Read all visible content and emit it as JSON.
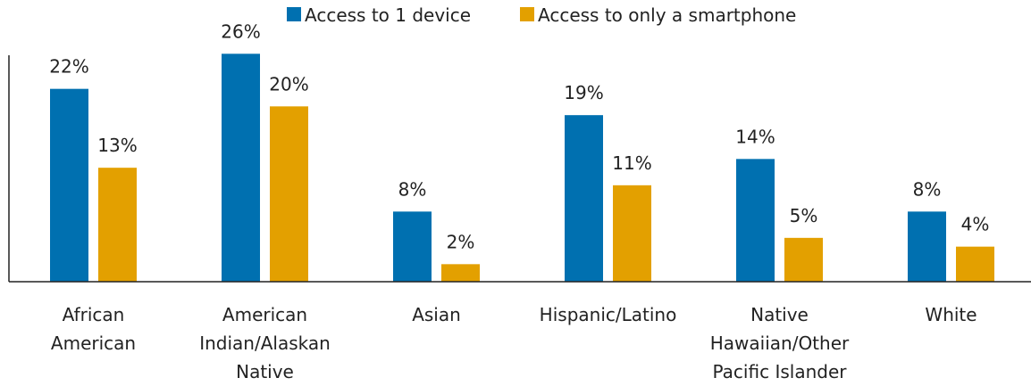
{
  "chart_data": {
    "type": "bar",
    "title": "",
    "xlabel": "",
    "ylabel": "",
    "ylim": [
      0,
      30
    ],
    "grid": false,
    "legend_position": "top-center",
    "categories": [
      [
        "African",
        "American"
      ],
      [
        "American",
        "Indian/Alaskan",
        "Native"
      ],
      [
        "Asian"
      ],
      [
        "Hispanic/Latino"
      ],
      [
        "Native",
        "Hawaiian/Other",
        "Pacific Islander"
      ],
      [
        "White"
      ]
    ],
    "series": [
      {
        "name": "Access to 1 device",
        "color": "#0070b0",
        "values": [
          22,
          26,
          8,
          19,
          14,
          8
        ],
        "labels": [
          "22%",
          "26%",
          "8%",
          "19%",
          "14%",
          "8%"
        ]
      },
      {
        "name": "Access to only a smartphone",
        "color": "#e3a000",
        "values": [
          13,
          20,
          2,
          11,
          5,
          4
        ],
        "labels": [
          "13%",
          "20%",
          "2%",
          "11%",
          "5%",
          "4%"
        ]
      }
    ]
  }
}
